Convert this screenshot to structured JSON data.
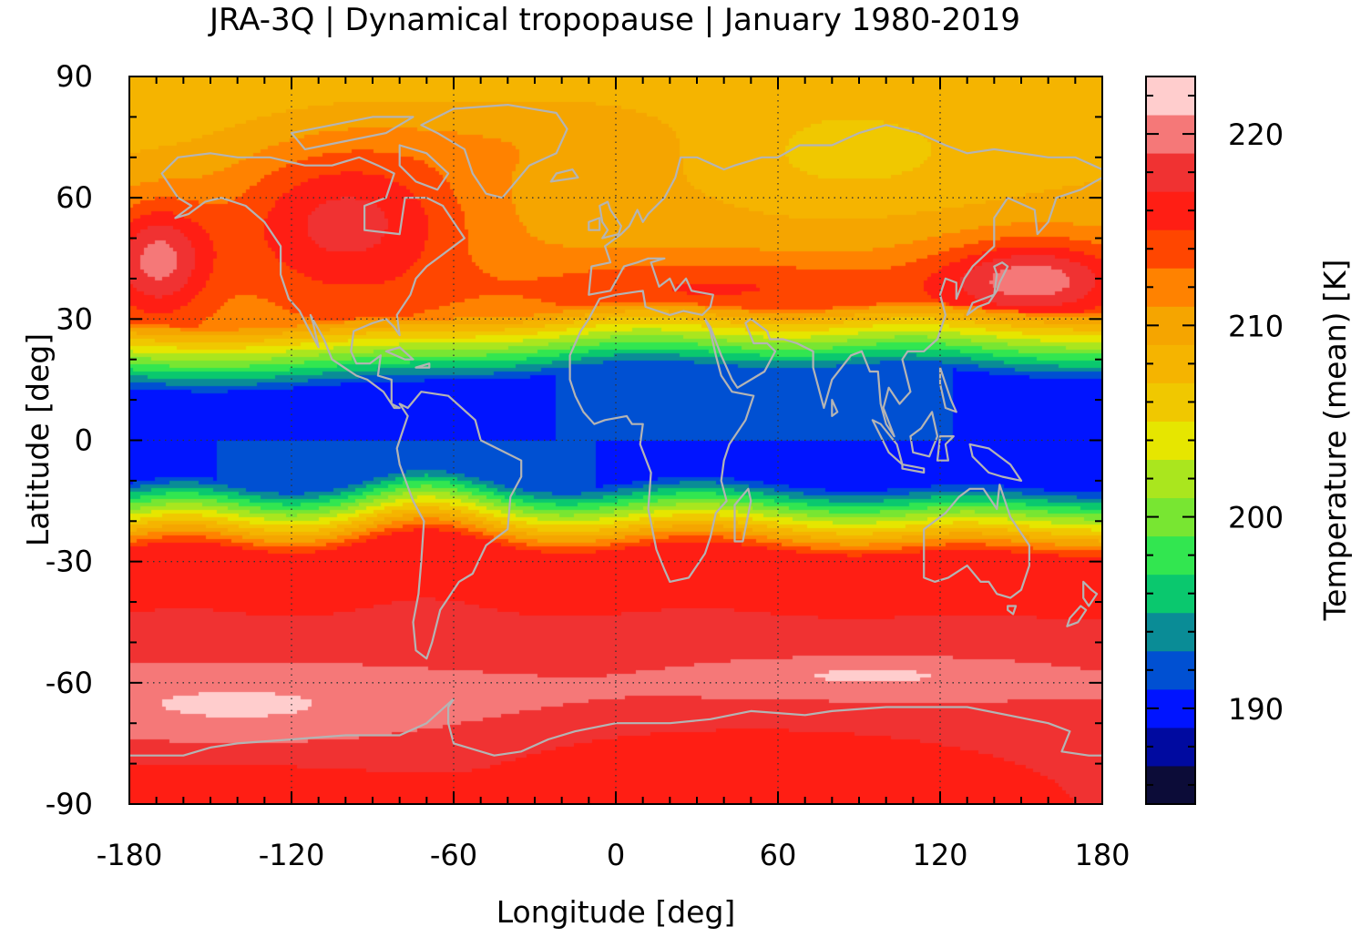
{
  "title": "JRA-3Q | Dynamical tropopause | January 1980-2019",
  "xlabel": "Longitude [deg]",
  "ylabel": "Latitude [deg]",
  "colorbar": {
    "label": "Temperature (mean) [K]",
    "range": [
      185,
      223
    ],
    "ticks": [
      "190",
      "200",
      "210",
      "220"
    ],
    "tick_values": [
      190,
      200,
      210,
      220
    ],
    "levels": [
      185,
      187,
      189,
      191,
      193,
      195,
      197,
      199,
      201,
      203,
      205,
      207,
      209,
      211,
      213,
      215,
      217,
      219,
      221,
      223
    ],
    "colors": [
      "#0c0c38",
      "#000aa0",
      "#0014ff",
      "#0050d2",
      "#0a8c96",
      "#0ac86e",
      "#32e650",
      "#78e632",
      "#aae61e",
      "#e6e600",
      "#f0c800",
      "#f5b400",
      "#f5a500",
      "#ff8200",
      "#ff4600",
      "#ff1e14",
      "#f03232",
      "#f57878",
      "#ffcdcd"
    ]
  },
  "chart_data": {
    "type": "heatmap",
    "title": "JRA-3Q | Dynamical tropopause | January 1980-2019",
    "xlabel": "Longitude [deg]",
    "ylabel": "Latitude [deg]",
    "xlim": [
      -180,
      180
    ],
    "ylim": [
      -90,
      90
    ],
    "xticks": [
      "-180",
      "-120",
      "-60",
      "0",
      "60",
      "120",
      "180"
    ],
    "xtick_values": [
      -180,
      -120,
      -60,
      0,
      60,
      120,
      180
    ],
    "yticks": [
      "90",
      "60",
      "30",
      "0",
      "-30",
      "-60",
      "-90"
    ],
    "ytick_values": [
      90,
      60,
      30,
      0,
      -30,
      -60,
      -90
    ],
    "grid": true,
    "overlay": "coastlines",
    "coastline_color": "#b4b4b4"
  }
}
